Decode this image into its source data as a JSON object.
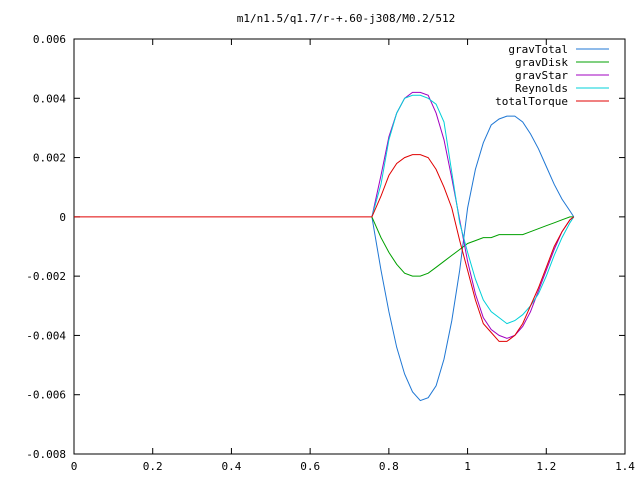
{
  "chart_data": {
    "type": "line",
    "title": "m1/n1.5/q1.7/r-+.60-j308/M0.2/512",
    "xlabel": "",
    "ylabel": "",
    "xlim": [
      0,
      1.4
    ],
    "ylim": [
      -0.008,
      0.006
    ],
    "x_ticks": [
      "0",
      "0.2",
      "0.4",
      "0.6",
      "0.8",
      "1",
      "1.2",
      "1.4"
    ],
    "x_tick_values": [
      0,
      0.2,
      0.4,
      0.6,
      0.8,
      1.0,
      1.2,
      1.4
    ],
    "y_ticks": [
      "0.006",
      "0.004",
      "0.002",
      "0",
      "-0.002",
      "-0.004",
      "-0.006",
      "-0.008"
    ],
    "y_tick_values": [
      0.006,
      0.004,
      0.002,
      0,
      -0.002,
      -0.004,
      -0.006,
      -0.008
    ],
    "legend_position": "top-right",
    "grid": false,
    "series": [
      {
        "name": "gravTotal",
        "color": "#1f77d4",
        "x": [
          0.757,
          0.78,
          0.8,
          0.82,
          0.84,
          0.86,
          0.88,
          0.9,
          0.92,
          0.94,
          0.96,
          0.98,
          1.0,
          1.02,
          1.04,
          1.06,
          1.08,
          1.1,
          1.12,
          1.14,
          1.16,
          1.18,
          1.2,
          1.22,
          1.24,
          1.26,
          1.27
        ],
        "y": [
          0,
          -0.0018,
          -0.0032,
          -0.0044,
          -0.0053,
          -0.0059,
          -0.0062,
          -0.0061,
          -0.0057,
          -0.0048,
          -0.0035,
          -0.0018,
          0.0003,
          0.0016,
          0.0025,
          0.0031,
          0.0033,
          0.0034,
          0.0034,
          0.0032,
          0.0028,
          0.0023,
          0.0017,
          0.0011,
          0.0006,
          0.0002,
          0
        ]
      },
      {
        "name": "gravDisk",
        "color": "#00a000",
        "x": [
          0.757,
          0.78,
          0.8,
          0.82,
          0.84,
          0.86,
          0.88,
          0.9,
          0.92,
          0.94,
          0.96,
          0.98,
          1.0,
          1.02,
          1.04,
          1.06,
          1.08,
          1.1,
          1.12,
          1.14,
          1.16,
          1.18,
          1.2,
          1.22,
          1.24,
          1.26,
          1.27
        ],
        "y": [
          0,
          -0.0007,
          -0.0012,
          -0.0016,
          -0.0019,
          -0.002,
          -0.002,
          -0.0019,
          -0.0017,
          -0.0015,
          -0.0013,
          -0.0011,
          -0.0009,
          -0.0008,
          -0.0007,
          -0.0007,
          -0.0006,
          -0.0006,
          -0.0006,
          -0.0006,
          -0.0005,
          -0.0004,
          -0.0003,
          -0.0002,
          -0.0001,
          0,
          0
        ]
      },
      {
        "name": "gravStar",
        "color": "#a000c0",
        "x": [
          0.757,
          0.78,
          0.8,
          0.82,
          0.84,
          0.86,
          0.88,
          0.9,
          0.92,
          0.94,
          0.96,
          0.98,
          1.0,
          1.02,
          1.04,
          1.06,
          1.08,
          1.1,
          1.12,
          1.14,
          1.16,
          1.18,
          1.2,
          1.22,
          1.24,
          1.26,
          1.27
        ],
        "y": [
          0,
          0.0014,
          0.0027,
          0.0035,
          0.004,
          0.0042,
          0.0042,
          0.0041,
          0.0035,
          0.0026,
          0.0013,
          -0.0001,
          -0.0015,
          -0.0026,
          -0.0034,
          -0.0038,
          -0.004,
          -0.0041,
          -0.004,
          -0.0037,
          -0.0032,
          -0.0025,
          -0.0018,
          -0.0011,
          -0.0005,
          -0.0001,
          0
        ]
      },
      {
        "name": "Reynolds",
        "color": "#00d0d8",
        "x": [
          0.757,
          0.78,
          0.8,
          0.82,
          0.84,
          0.86,
          0.88,
          0.9,
          0.92,
          0.94,
          0.96,
          0.98,
          1.0,
          1.02,
          1.04,
          1.06,
          1.08,
          1.1,
          1.12,
          1.14,
          1.16,
          1.18,
          1.2,
          1.22,
          1.24,
          1.26,
          1.27
        ],
        "y": [
          0,
          0.0011,
          0.0026,
          0.0035,
          0.004,
          0.0041,
          0.0041,
          0.004,
          0.0038,
          0.0032,
          0.0015,
          -0.0002,
          -0.0012,
          -0.0021,
          -0.0028,
          -0.0032,
          -0.0034,
          -0.0036,
          -0.0035,
          -0.0033,
          -0.003,
          -0.0026,
          -0.002,
          -0.0013,
          -0.0007,
          -0.0002,
          0
        ]
      },
      {
        "name": "totalTorque",
        "color": "#e00000",
        "x": [
          0,
          0.757,
          0.78,
          0.8,
          0.82,
          0.84,
          0.86,
          0.88,
          0.9,
          0.92,
          0.94,
          0.96,
          0.98,
          1.0,
          1.02,
          1.04,
          1.06,
          1.08,
          1.1,
          1.12,
          1.14,
          1.16,
          1.18,
          1.2,
          1.22,
          1.24,
          1.26,
          1.27
        ],
        "y": [
          0,
          0,
          0.0007,
          0.0014,
          0.0018,
          0.002,
          0.0021,
          0.0021,
          0.002,
          0.0016,
          0.001,
          0.0003,
          -0.0008,
          -0.0018,
          -0.0028,
          -0.0036,
          -0.0039,
          -0.0042,
          -0.0042,
          -0.004,
          -0.0036,
          -0.003,
          -0.0024,
          -0.0017,
          -0.001,
          -0.0005,
          -0.0001,
          0
        ]
      }
    ]
  }
}
